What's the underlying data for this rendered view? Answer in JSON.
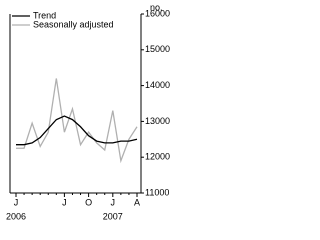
{
  "chart_data": {
    "type": "line",
    "y_label": "no.",
    "categories": [
      "J",
      null,
      null,
      null,
      null,
      null,
      "J",
      null,
      null,
      "O",
      null,
      null,
      "J",
      null,
      null,
      "A"
    ],
    "years": [
      {
        "index": 0,
        "label": "2006"
      },
      {
        "index": 12,
        "label": "2007"
      }
    ],
    "series": [
      {
        "name": "Trend",
        "color": "#000000",
        "values": [
          12350,
          12350,
          12400,
          12550,
          12800,
          13050,
          13150,
          13050,
          12850,
          12600,
          12450,
          12400,
          12400,
          12450,
          12450,
          12500
        ]
      },
      {
        "name": "Seasonally adjusted",
        "color": "#b0b0b0",
        "values": [
          12250,
          12250,
          12950,
          12300,
          12700,
          14200,
          12700,
          13350,
          12350,
          12700,
          12400,
          12200,
          13300,
          11900,
          12500,
          12850
        ]
      }
    ],
    "ylim": [
      11000,
      16000
    ],
    "yticks": [
      11000,
      12000,
      13000,
      14000,
      15000,
      16000
    ]
  }
}
